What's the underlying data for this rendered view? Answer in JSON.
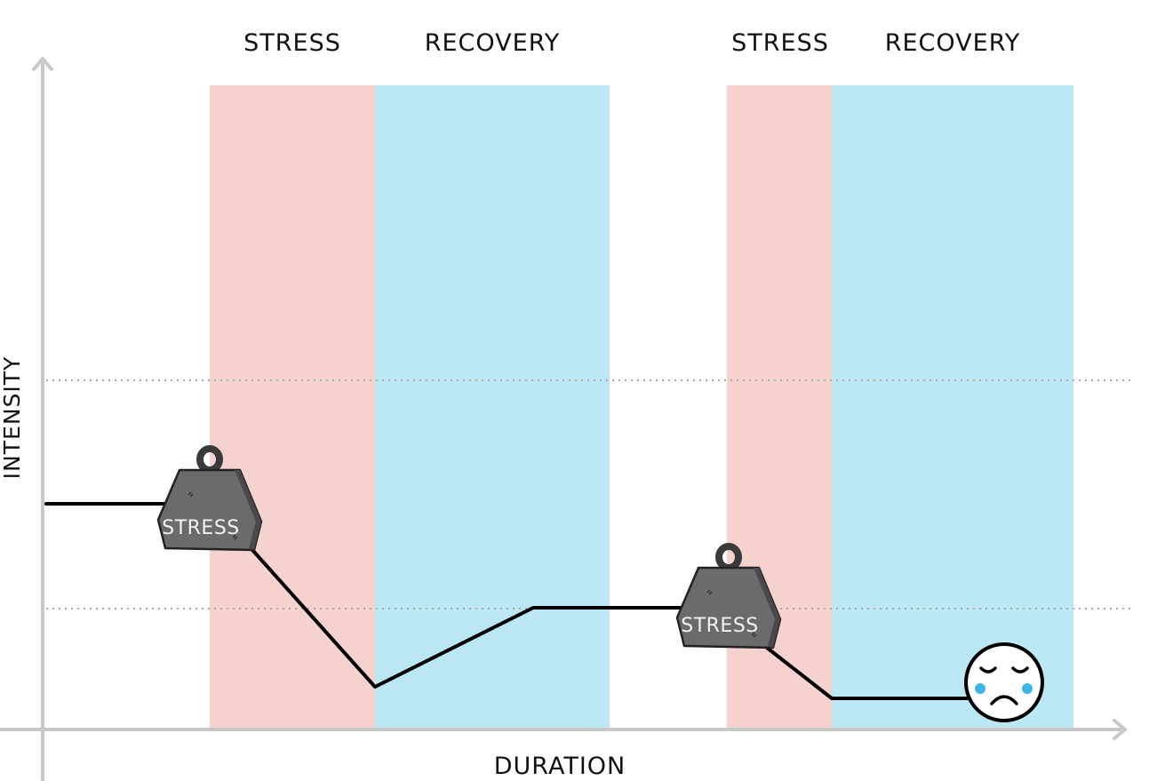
{
  "phase_labels": [
    "STRESS",
    "RECOVERY",
    "STRESS",
    "RECOVERY"
  ],
  "axes": {
    "y_label": "INTENSITY",
    "x_label": "DURATION"
  },
  "weights": [
    {
      "label": "STRESS"
    },
    {
      "label": "STRESS"
    }
  ],
  "face": {
    "expression": "sad-crying"
  },
  "colors": {
    "stress_band": "#f5d2cd",
    "recovery_band": "#bce8f6",
    "line": "#000000",
    "axis": "#c8c8c8",
    "guide": "#a8a8a8",
    "weight_body": "#6b6b6d",
    "tear": "#3db6e6"
  },
  "icons": [
    "weight-icon",
    "sad-face-icon"
  ]
}
